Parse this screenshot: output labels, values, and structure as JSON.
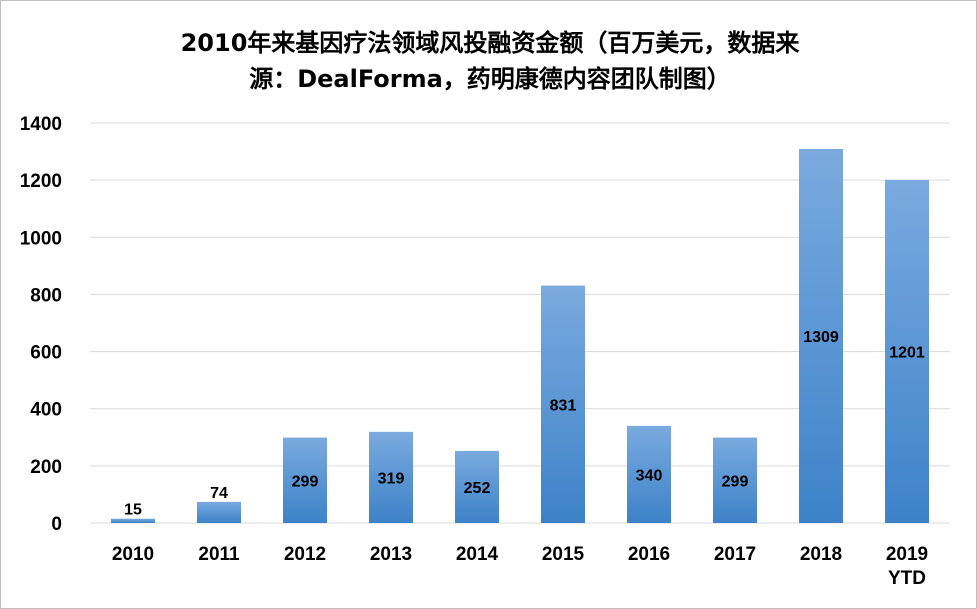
{
  "chart_data": {
    "type": "bar",
    "title_line1": "2010年来基因疗法领域风投融资金额（百万美元，数据来",
    "title_line2": "源：DealForma，药明康德内容团队制图）",
    "categories": [
      [
        "2010"
      ],
      [
        "2011"
      ],
      [
        "2012"
      ],
      [
        "2013"
      ],
      [
        "2014"
      ],
      [
        "2015"
      ],
      [
        "2016"
      ],
      [
        "2017"
      ],
      [
        "2018"
      ],
      [
        "2019",
        "YTD"
      ]
    ],
    "values": [
      15,
      74,
      299,
      319,
      252,
      831,
      340,
      299,
      1309,
      1201
    ],
    "data_labels": [
      "15",
      "74",
      "299",
      "319",
      "252",
      "831",
      "340",
      "299",
      "1309",
      "1201"
    ],
    "ylim": [
      0,
      1400
    ],
    "yticks": [
      0,
      200,
      400,
      600,
      800,
      1000,
      1200,
      1400
    ],
    "grid": true,
    "colors": {
      "bar_top": "#7aaadf",
      "bar_bottom": "#3d82c8",
      "grid": "#d9d9d9"
    }
  }
}
